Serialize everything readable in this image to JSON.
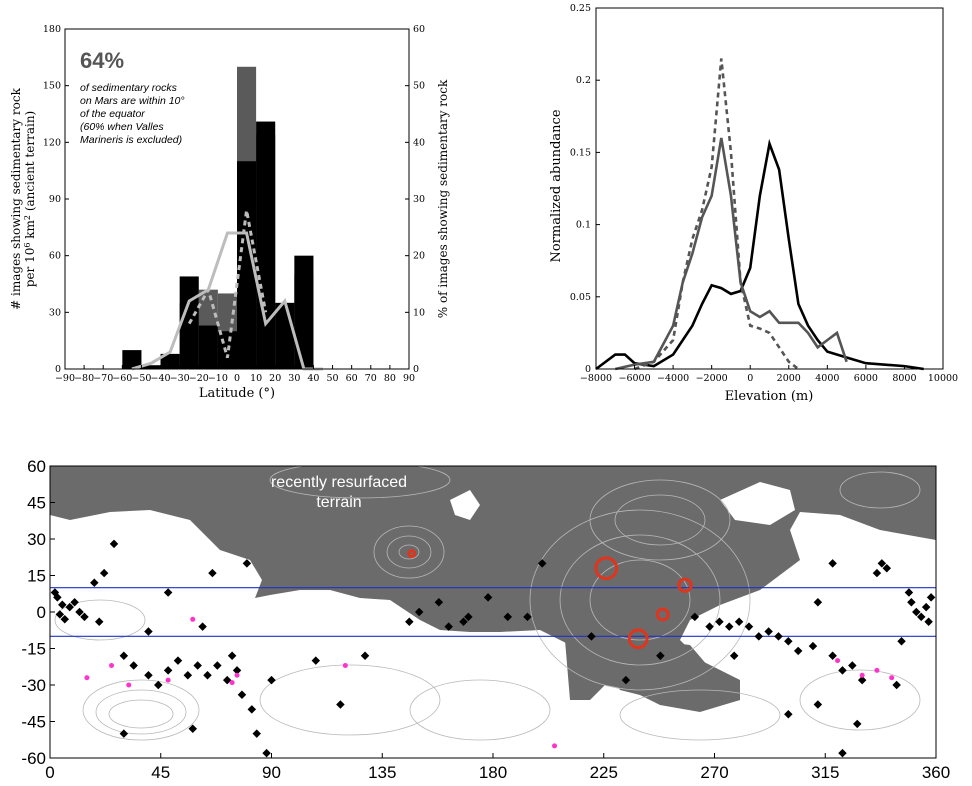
{
  "chart_data": [
    {
      "type": "bar",
      "xlabel": "Latitude (°)",
      "ylabel_left": "# images showing sedimentary rock per 10⁶ km² (ancient terrain)",
      "ylabel_right": "% of images showing sedimentary rock",
      "xlim": [
        -90,
        90
      ],
      "ylim_left": [
        0,
        180
      ],
      "ylim_right": [
        0,
        60
      ],
      "xticks": [
        "−90",
        "−80",
        "−70",
        "−60",
        "−50",
        "−40",
        "−30",
        "−20",
        "−10",
        "0",
        "10",
        "20",
        "30",
        "40",
        "50",
        "60",
        "70",
        "80",
        "90"
      ],
      "yticks_left": [
        "0",
        "30",
        "60",
        "90",
        "120",
        "150",
        "180"
      ],
      "yticks_right": [
        "0",
        "10",
        "20",
        "30",
        "40",
        "50",
        "60"
      ],
      "bin_edges": [
        -60,
        -50,
        -40,
        -30,
        -20,
        -10,
        0,
        10,
        20,
        30,
        40
      ],
      "bars_black": [
        10,
        2,
        8,
        49,
        23,
        20,
        110,
        131,
        35,
        60
      ],
      "bars_gray": [
        0,
        0,
        5,
        35,
        42,
        40,
        160,
        124,
        35,
        50
      ],
      "line_gray_solid": {
        "x": [
          -55,
          -45,
          -35,
          -25,
          -15,
          -5,
          5,
          15,
          25,
          35,
          45
        ],
        "y": [
          0,
          1,
          3,
          12,
          14,
          24,
          24,
          8,
          12,
          0,
          0
        ]
      },
      "line_gray_dashed": {
        "x": [
          -25,
          -15,
          -5,
          5,
          15
        ],
        "y": [
          8,
          14,
          2,
          28,
          10
        ]
      },
      "annotation_big": "64%",
      "annotation_lines": [
        "of sedimentary rocks",
        "on Mars are within 10°",
        "of the equator",
        "(60% when Valles",
        "Marineris is excluded)"
      ]
    },
    {
      "type": "line",
      "xlabel": "Elevation (m)",
      "ylabel": "Normalized abundance",
      "xlim": [
        -8000,
        10000
      ],
      "ylim": [
        0,
        0.25
      ],
      "xticks": [
        "−8000",
        "−6000",
        "−4000",
        "−2000",
        "0",
        "2000",
        "4000",
        "6000",
        "8000",
        "10000"
      ],
      "yticks": [
        "0",
        "0.05",
        "0.1",
        "0.15",
        "0.2",
        "0.25"
      ],
      "series": [
        {
          "style": "black-solid",
          "x": [
            -8000,
            -7000,
            -6500,
            -6000,
            -5000,
            -4000,
            -3500,
            -3000,
            -2500,
            -2000,
            -1500,
            -1000,
            -500,
            0,
            500,
            1000,
            1500,
            2000,
            2500,
            3000,
            3500,
            4000,
            5000,
            6000,
            8000,
            9000
          ],
          "y": [
            0,
            0.01,
            0.01,
            0.004,
            0.002,
            0.01,
            0.02,
            0.03,
            0.045,
            0.058,
            0.056,
            0.052,
            0.054,
            0.07,
            0.12,
            0.156,
            0.138,
            0.09,
            0.045,
            0.03,
            0.02,
            0.012,
            0.008,
            0.004,
            0.002,
            0
          ]
        },
        {
          "style": "gray-solid",
          "x": [
            -7000,
            -6000,
            -5000,
            -4000,
            -3500,
            -3000,
            -2500,
            -2000,
            -1500,
            -1000,
            -500,
            0,
            500,
            1000,
            1500,
            2000,
            2500,
            3000,
            3500,
            4000,
            4500,
            5000
          ],
          "y": [
            0,
            0.003,
            0.005,
            0.03,
            0.06,
            0.08,
            0.105,
            0.12,
            0.16,
            0.12,
            0.06,
            0.04,
            0.036,
            0.04,
            0.032,
            0.032,
            0.032,
            0.025,
            0.015,
            0.02,
            0.025,
            0.005
          ]
        },
        {
          "style": "gray-dashed",
          "x": [
            -6000,
            -5000,
            -4000,
            -3500,
            -3000,
            -2500,
            -2000,
            -1500,
            -1000,
            -500,
            0,
            500,
            1000,
            1500,
            2000,
            2500
          ],
          "y": [
            0,
            0.005,
            0.02,
            0.06,
            0.09,
            0.11,
            0.14,
            0.215,
            0.15,
            0.06,
            0.03,
            0.028,
            0.025,
            0.015,
            0.005,
            0
          ]
        }
      ]
    },
    {
      "type": "scatter",
      "xlim": [
        0,
        360
      ],
      "ylim": [
        -60,
        60
      ],
      "xticks": [
        "0",
        "45",
        "90",
        "135",
        "180",
        "225",
        "270",
        "315",
        "360"
      ],
      "yticks": [
        "60",
        "45",
        "30",
        "15",
        "0",
        "-15",
        "-30",
        "-45",
        "-60"
      ],
      "equator_lines": [
        10,
        -10
      ],
      "annotation": [
        "recently resurfaced",
        "terrain"
      ],
      "colors": {
        "resurfaced": "#6b6b6b",
        "ancient": "#ffffff",
        "contour": "#b8b8b8",
        "rock": "#000000",
        "pink": "#ff33cc",
        "volcano": "#e0341c",
        "lat_line": "#2030c8"
      },
      "rock_points": [
        [
          3,
          6
        ],
        [
          5,
          3
        ],
        [
          4,
          -1
        ],
        [
          8,
          2
        ],
        [
          6,
          -3
        ],
        [
          10,
          4
        ],
        [
          2,
          8
        ],
        [
          12,
          0
        ],
        [
          14,
          -2
        ],
        [
          18,
          12
        ],
        [
          20,
          -4
        ],
        [
          26,
          28
        ],
        [
          22,
          16
        ],
        [
          30,
          -18
        ],
        [
          34,
          -22
        ],
        [
          40,
          -26
        ],
        [
          44,
          -30
        ],
        [
          48,
          -24
        ],
        [
          52,
          -20
        ],
        [
          56,
          -26
        ],
        [
          60,
          -22
        ],
        [
          64,
          -26
        ],
        [
          68,
          -22
        ],
        [
          72,
          -28
        ],
        [
          76,
          -24
        ],
        [
          78,
          -34
        ],
        [
          82,
          -40
        ],
        [
          74,
          -18
        ],
        [
          80,
          20
        ],
        [
          84,
          -50
        ],
        [
          88,
          -58
        ],
        [
          66,
          16
        ],
        [
          48,
          8
        ],
        [
          40,
          -8
        ],
        [
          30,
          -50
        ],
        [
          58,
          -48
        ],
        [
          62,
          -6
        ],
        [
          90,
          -28
        ],
        [
          108,
          -20
        ],
        [
          118,
          -38
        ],
        [
          128,
          -18
        ],
        [
          146,
          -4
        ],
        [
          150,
          0
        ],
        [
          158,
          4
        ],
        [
          162,
          -6
        ],
        [
          168,
          -4
        ],
        [
          170,
          -2
        ],
        [
          178,
          6
        ],
        [
          186,
          -2
        ],
        [
          194,
          -2
        ],
        [
          200,
          20
        ],
        [
          220,
          -10
        ],
        [
          234,
          -28
        ],
        [
          248,
          -18
        ],
        [
          262,
          -2
        ],
        [
          268,
          -6
        ],
        [
          272,
          -4
        ],
        [
          276,
          -6
        ],
        [
          280,
          -4
        ],
        [
          284,
          -6
        ],
        [
          288,
          -10
        ],
        [
          292,
          -8
        ],
        [
          296,
          -10
        ],
        [
          300,
          -12
        ],
        [
          304,
          -16
        ],
        [
          310,
          -14
        ],
        [
          318,
          -18
        ],
        [
          322,
          -24
        ],
        [
          326,
          -22
        ],
        [
          330,
          -28
        ],
        [
          336,
          16
        ],
        [
          338,
          20
        ],
        [
          340,
          18
        ],
        [
          346,
          -12
        ],
        [
          350,
          4
        ],
        [
          352,
          0
        ],
        [
          354,
          -2
        ],
        [
          356,
          2
        ],
        [
          358,
          6
        ],
        [
          357,
          -4
        ],
        [
          349,
          8
        ],
        [
          344,
          -30
        ],
        [
          328,
          -46
        ],
        [
          322,
          -58
        ],
        [
          312,
          -38
        ],
        [
          300,
          -42
        ],
        [
          318,
          20
        ],
        [
          312,
          4
        ],
        [
          278,
          -18
        ]
      ],
      "pink_points": [
        [
          15,
          -27
        ],
        [
          25,
          -22
        ],
        [
          32,
          -30
        ],
        [
          48,
          -28
        ],
        [
          58,
          -3
        ],
        [
          74,
          -29
        ],
        [
          76,
          -26
        ],
        [
          120,
          -22
        ],
        [
          205,
          -55
        ],
        [
          320,
          -20
        ],
        [
          330,
          -26
        ],
        [
          336,
          -24
        ],
        [
          342,
          -27
        ]
      ],
      "volcanoes": [
        {
          "x": 147,
          "y": 24,
          "r": 1.2
        },
        {
          "x": 226,
          "y": 18,
          "r": 4.2
        },
        {
          "x": 258,
          "y": 11,
          "r": 2.5
        },
        {
          "x": 249,
          "y": -1,
          "r": 2.2
        },
        {
          "x": 239,
          "y": -11,
          "r": 3.6
        }
      ]
    }
  ]
}
